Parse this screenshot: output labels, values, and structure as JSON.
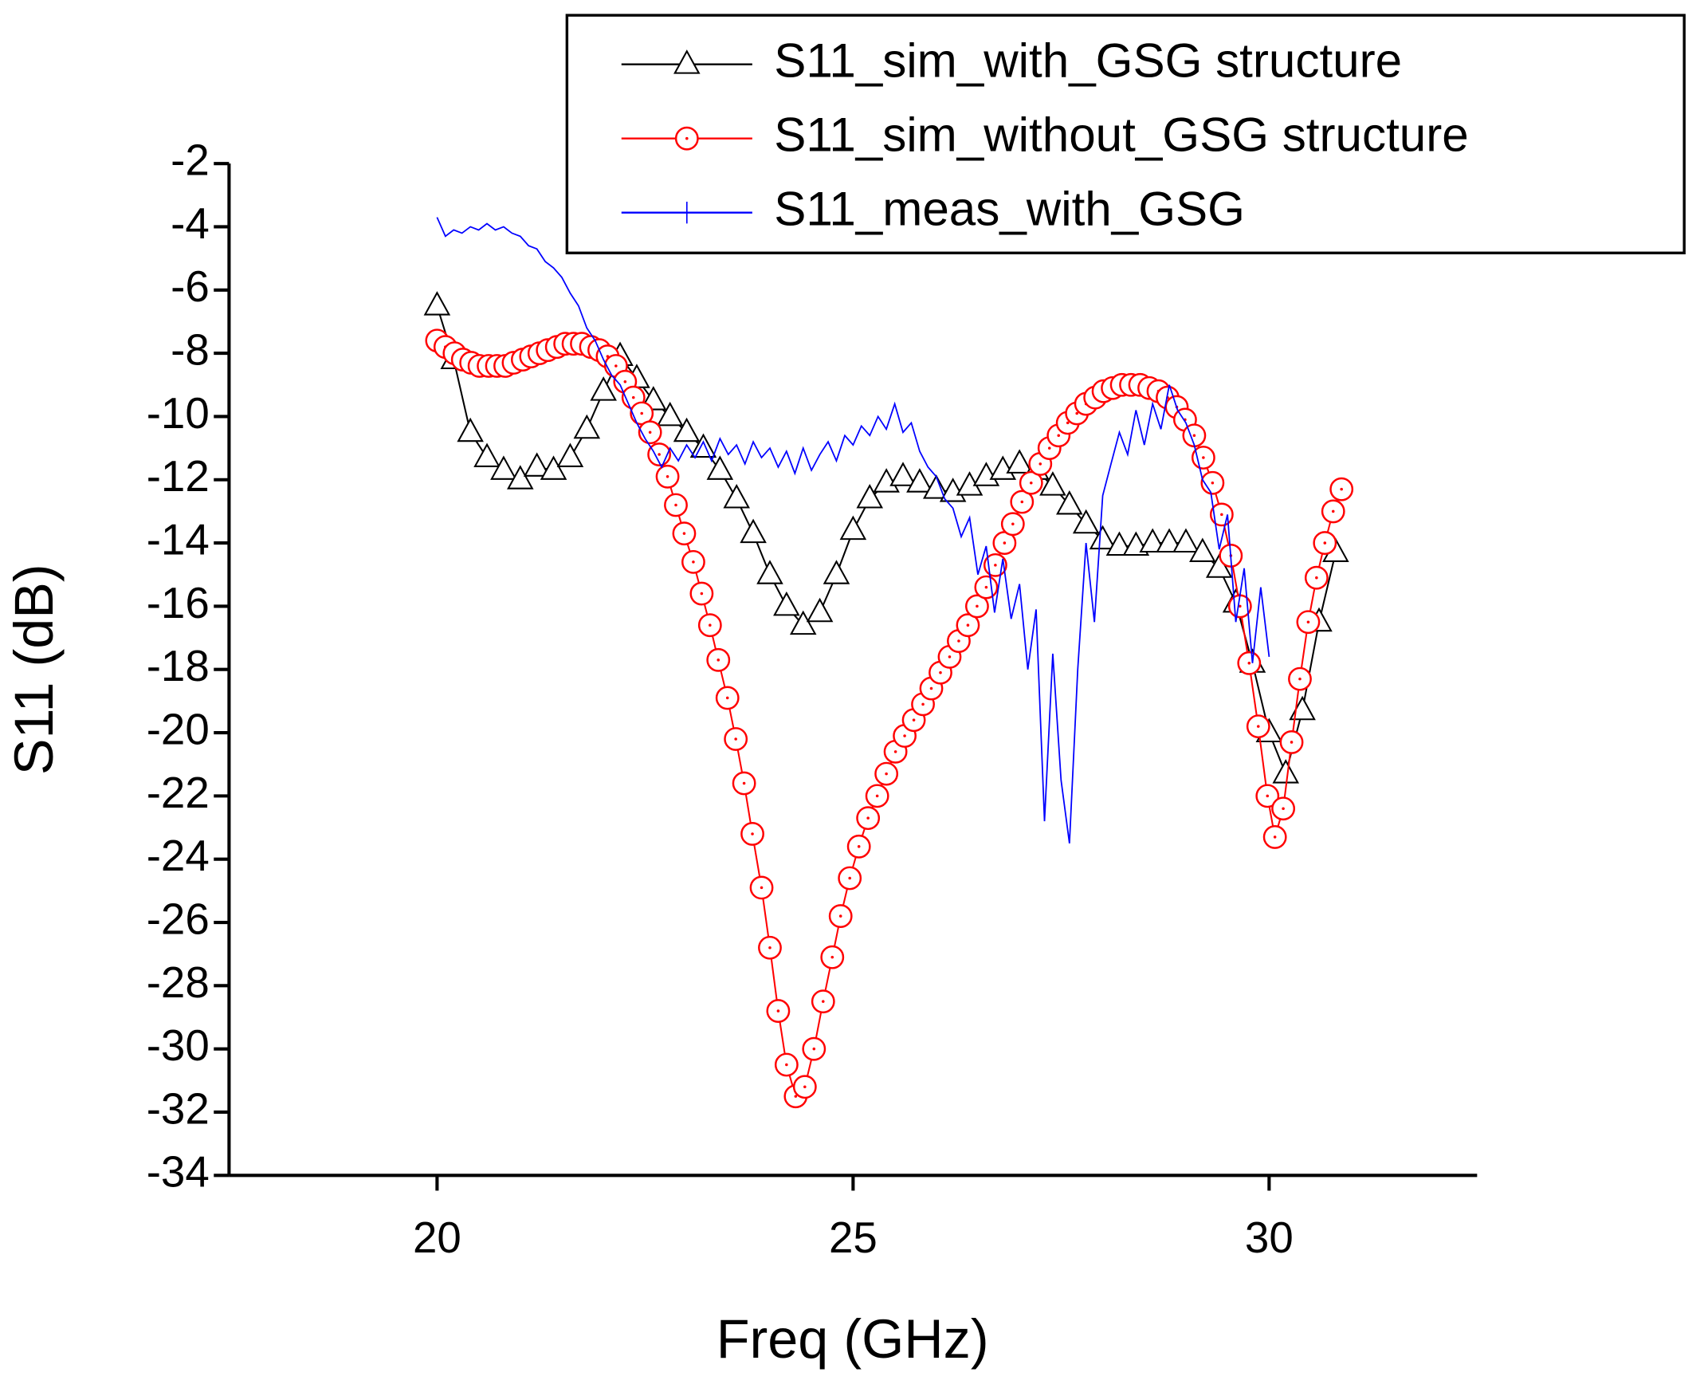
{
  "chart_data": {
    "type": "line",
    "xlabel": "Freq (GHz)",
    "ylabel": "S11 (dB)",
    "xlim": [
      17.5,
      32.5
    ],
    "xticks": [
      20,
      25,
      30
    ],
    "ylim": [
      -34,
      -2
    ],
    "yticks": [
      -34,
      -32,
      -30,
      -28,
      -26,
      -24,
      -22,
      -20,
      -18,
      -16,
      -14,
      -12,
      -10,
      -8,
      -6,
      -4,
      -2
    ],
    "legend": "top-right",
    "series": [
      {
        "name": "S11_sim_with_GSG structure",
        "color": "#000000",
        "marker": "triangle",
        "x": [
          20.0,
          20.2,
          20.4,
          20.6,
          20.8,
          21.0,
          21.2,
          21.4,
          21.6,
          21.8,
          22.0,
          22.2,
          22.4,
          22.6,
          22.8,
          23.0,
          23.2,
          23.4,
          23.6,
          23.8,
          24.0,
          24.2,
          24.4,
          24.6,
          24.8,
          25.0,
          25.2,
          25.4,
          25.6,
          25.8,
          26.0,
          26.2,
          26.4,
          26.6,
          26.8,
          27.0,
          27.2,
          27.4,
          27.6,
          27.8,
          28.0,
          28.2,
          28.4,
          28.6,
          28.8,
          29.0,
          29.2,
          29.4,
          29.6,
          29.8,
          30.0,
          30.2,
          30.4,
          30.6,
          30.8
        ],
        "values": [
          -6.5,
          -8.2,
          -10.5,
          -11.3,
          -11.7,
          -12,
          -11.6,
          -11.7,
          -11.3,
          -10.4,
          -9.2,
          -8.1,
          -8.8,
          -9.5,
          -10,
          -10.5,
          -11,
          -11.7,
          -12.6,
          -13.7,
          -15,
          -16,
          -16.6,
          -16.2,
          -15,
          -13.6,
          -12.6,
          -12.1,
          -11.9,
          -12.1,
          -12.3,
          -12.4,
          -12.2,
          -11.9,
          -11.7,
          -11.5,
          -11.7,
          -12.2,
          -12.8,
          -13.4,
          -13.9,
          -14.1,
          -14.1,
          -14,
          -14,
          -14,
          -14.3,
          -14.8,
          -15.9,
          -17.8,
          -20,
          -21.3,
          -19.3,
          -16.5,
          -14.3
        ]
      },
      {
        "name": "S11_sim_without_GSG structure",
        "color": "#ff0000",
        "marker": "circle",
        "x": [
          20.0,
          20.1,
          20.21,
          20.31,
          20.41,
          20.51,
          20.62,
          20.72,
          20.82,
          20.92,
          21.03,
          21.13,
          21.23,
          21.33,
          21.44,
          21.54,
          21.64,
          21.74,
          21.85,
          21.95,
          22.05,
          22.15,
          22.26,
          22.36,
          22.46,
          22.56,
          22.67,
          22.77,
          22.87,
          22.97,
          23.08,
          23.18,
          23.28,
          23.38,
          23.49,
          23.59,
          23.69,
          23.79,
          23.9,
          24.0,
          24.1,
          24.2,
          24.31,
          24.42,
          24.53,
          24.64,
          24.75,
          24.85,
          24.96,
          25.07,
          25.18,
          25.29,
          25.4,
          25.51,
          25.62,
          25.73,
          25.84,
          25.94,
          26.05,
          26.16,
          26.27,
          26.38,
          26.49,
          26.6,
          26.71,
          26.82,
          26.92,
          27.03,
          27.14,
          27.25,
          27.36,
          27.47,
          27.58,
          27.69,
          27.8,
          27.91,
          28.01,
          28.12,
          28.23,
          28.34,
          28.45,
          28.56,
          28.67,
          28.78,
          28.89,
          28.99,
          29.1,
          29.21,
          29.32,
          29.43,
          29.54,
          29.65,
          29.76,
          29.87,
          29.98,
          30.07,
          30.17,
          30.27,
          30.37,
          30.47,
          30.57,
          30.67,
          30.77,
          30.87
        ],
        "values": [
          -7.6,
          -7.8,
          -8.0,
          -8.2,
          -8.3,
          -8.4,
          -8.4,
          -8.4,
          -8.4,
          -8.3,
          -8.2,
          -8.1,
          -8.0,
          -7.9,
          -7.8,
          -7.7,
          -7.7,
          -7.7,
          -7.8,
          -7.9,
          -8.1,
          -8.4,
          -8.9,
          -9.4,
          -9.9,
          -10.5,
          -11.2,
          -11.9,
          -12.8,
          -13.7,
          -14.6,
          -15.6,
          -16.6,
          -17.7,
          -18.9,
          -20.2,
          -21.6,
          -23.2,
          -24.9,
          -26.8,
          -28.8,
          -30.5,
          -31.5,
          -31.2,
          -30.0,
          -28.5,
          -27.1,
          -25.8,
          -24.6,
          -23.6,
          -22.7,
          -22.0,
          -21.3,
          -20.6,
          -20.1,
          -19.6,
          -19.1,
          -18.6,
          -18.1,
          -17.6,
          -17.1,
          -16.6,
          -16.0,
          -15.4,
          -14.7,
          -14.0,
          -13.4,
          -12.7,
          -12.1,
          -11.5,
          -11.0,
          -10.6,
          -10.2,
          -9.9,
          -9.6,
          -9.4,
          -9.2,
          -9.1,
          -9.0,
          -9.0,
          -9.0,
          -9.1,
          -9.2,
          -9.4,
          -9.7,
          -10.1,
          -10.6,
          -11.3,
          -12.1,
          -13.1,
          -14.4,
          -16.0,
          -17.8,
          -19.8,
          -22.0,
          -23.3,
          -22.4,
          -20.3,
          -18.3,
          -16.5,
          -15.1,
          -14.0,
          -13.0,
          -12.3
        ]
      },
      {
        "name": "S11_meas_with_GSG",
        "color": "#0000ff",
        "marker": "vline",
        "x": [
          20.0,
          20.1,
          20.2,
          20.3,
          20.4,
          20.5,
          20.6,
          20.7,
          20.8,
          20.9,
          21.0,
          21.1,
          21.2,
          21.3,
          21.4,
          21.5,
          21.6,
          21.7,
          21.8,
          21.9,
          22.0,
          22.1,
          22.2,
          22.3,
          22.4,
          22.5,
          22.6,
          22.7,
          22.8,
          22.9,
          23.0,
          23.1,
          23.2,
          23.3,
          23.4,
          23.5,
          23.6,
          23.7,
          23.8,
          23.9,
          24.0,
          24.1,
          24.2,
          24.3,
          24.4,
          24.5,
          24.6,
          24.7,
          24.8,
          24.9,
          25.0,
          25.1,
          25.2,
          25.3,
          25.4,
          25.5,
          25.6,
          25.7,
          25.8,
          25.9,
          26.0,
          26.1,
          26.2,
          26.3,
          26.4,
          26.5,
          26.6,
          26.7,
          26.8,
          26.9,
          27.0,
          27.1,
          27.2,
          27.3,
          27.4,
          27.5,
          27.6,
          27.7,
          27.8,
          27.9,
          28.0,
          28.1,
          28.2,
          28.3,
          28.4,
          28.5,
          28.6,
          28.7,
          28.8,
          28.9,
          29.0,
          29.1,
          29.2,
          29.3,
          29.4,
          29.5,
          29.6,
          29.7,
          29.8,
          29.9,
          30.0
        ],
        "values": [
          -3.7,
          -4.3,
          -4.1,
          -4.2,
          -4.0,
          -4.1,
          -3.9,
          -4.1,
          -4.0,
          -4.2,
          -4.3,
          -4.6,
          -4.7,
          -5.1,
          -5.3,
          -5.6,
          -6.1,
          -6.5,
          -7.2,
          -7.6,
          -8.2,
          -8.7,
          -9.0,
          -9.6,
          -10.2,
          -10.7,
          -11.1,
          -11.6,
          -11.0,
          -11.4,
          -10.9,
          -11.3,
          -10.8,
          -11.4,
          -10.7,
          -11.2,
          -10.9,
          -11.5,
          -10.8,
          -11.3,
          -11.0,
          -11.6,
          -11.1,
          -11.8,
          -11.0,
          -11.7,
          -11.2,
          -10.8,
          -11.4,
          -10.6,
          -10.9,
          -10.3,
          -10.6,
          -10.0,
          -10.4,
          -9.6,
          -10.5,
          -10.2,
          -11.1,
          -11.6,
          -11.9,
          -12.6,
          -12.9,
          -13.8,
          -13.2,
          -15.0,
          -14.1,
          -16.2,
          -14.5,
          -16.4,
          -15.3,
          -18.0,
          -16.1,
          -22.8,
          -17.5,
          -21.5,
          -23.5,
          -18.0,
          -14.0,
          -16.5,
          -12.5,
          -11.5,
          -10.5,
          -11.2,
          -9.8,
          -10.9,
          -9.6,
          -10.4,
          -9.0,
          -9.8,
          -10.2,
          -10.9,
          -12.0,
          -12.4,
          -14.2,
          -13.1,
          -16.5,
          -14.8,
          -17.8,
          -15.4,
          -17.6
        ]
      }
    ]
  }
}
